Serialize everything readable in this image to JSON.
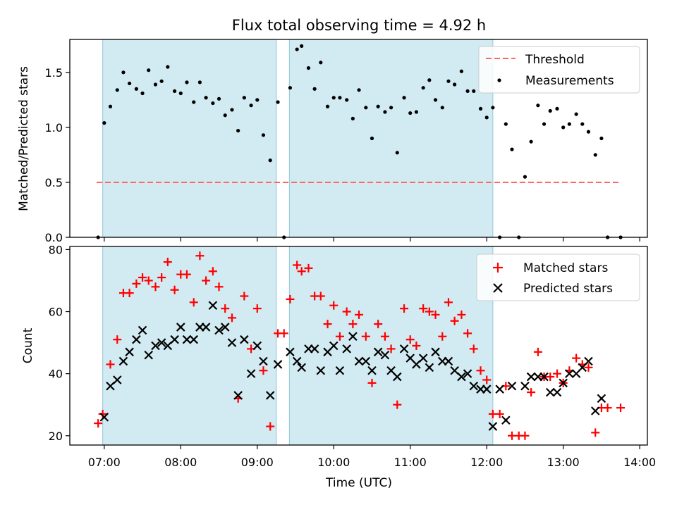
{
  "chart_data": [
    {
      "type": "scatter",
      "title": "Flux total observing time = 4.92 h",
      "xlabel": "",
      "ylabel": "Matched/Predicted stars",
      "x_unit": "hours UTC",
      "xlim": [
        6.55,
        14.1
      ],
      "ylim": [
        0,
        1.8
      ],
      "yticks": [
        0.0,
        0.5,
        1.0,
        1.5
      ],
      "ytick_labels": [
        "0.0",
        "0.5",
        "1.0",
        "1.5"
      ],
      "shaded_intervals": [
        [
          6.98,
          9.25
        ],
        [
          9.42,
          12.08
        ]
      ],
      "shade_color": "#add8e6",
      "legend_position": "top-right",
      "legend": [
        "Threshold",
        "Measurements"
      ],
      "threshold": {
        "name": "Threshold",
        "y": 0.5,
        "x": [
          6.9,
          13.75
        ],
        "color": "#ff6666",
        "style": "dashed"
      },
      "series": [
        {
          "name": "Measurements",
          "color": "#000000",
          "x": [
            6.92,
            7.0,
            7.08,
            7.17,
            7.25,
            7.33,
            7.42,
            7.5,
            7.58,
            7.67,
            7.75,
            7.83,
            7.92,
            8.0,
            8.08,
            8.17,
            8.25,
            8.33,
            8.42,
            8.5,
            8.58,
            8.67,
            8.75,
            8.83,
            8.92,
            9.0,
            9.08,
            9.17,
            9.27,
            9.35,
            9.43,
            9.52,
            9.58,
            9.67,
            9.75,
            9.83,
            9.92,
            10.0,
            10.08,
            10.17,
            10.25,
            10.33,
            10.42,
            10.5,
            10.58,
            10.67,
            10.75,
            10.83,
            10.92,
            11.0,
            11.08,
            11.17,
            11.25,
            11.33,
            11.42,
            11.5,
            11.58,
            11.67,
            11.75,
            11.83,
            11.92,
            12.0,
            12.08,
            12.17,
            12.25,
            12.33,
            12.42,
            12.5,
            12.58,
            12.67,
            12.75,
            12.83,
            12.92,
            13.0,
            13.08,
            13.17,
            13.25,
            13.33,
            13.42,
            13.5,
            13.58,
            13.75
          ],
          "y": [
            0.0,
            1.04,
            1.19,
            1.34,
            1.5,
            1.4,
            1.35,
            1.31,
            1.52,
            1.39,
            1.42,
            1.55,
            1.33,
            1.31,
            1.41,
            1.23,
            1.41,
            1.27,
            1.22,
            1.26,
            1.11,
            1.16,
            0.97,
            1.27,
            1.2,
            1.25,
            0.93,
            0.7,
            1.23,
            0.0,
            1.36,
            1.71,
            1.74,
            1.54,
            1.35,
            1.59,
            1.19,
            1.27,
            1.27,
            1.25,
            1.08,
            1.34,
            1.18,
            0.9,
            1.19,
            1.14,
            1.18,
            0.77,
            1.27,
            1.13,
            1.14,
            1.36,
            1.43,
            1.25,
            1.18,
            1.42,
            1.39,
            1.51,
            1.33,
            1.33,
            1.17,
            1.09,
            1.18,
            0.0,
            1.03,
            0.8,
            0.0,
            0.55,
            0.87,
            1.2,
            1.03,
            1.15,
            1.17,
            1.0,
            1.03,
            1.12,
            1.03,
            0.96,
            0.75,
            0.9,
            0.0,
            0.0
          ]
        }
      ]
    },
    {
      "type": "scatter",
      "title": "",
      "xlabel": "Time (UTC)",
      "ylabel": "Count",
      "x_unit": "hours UTC",
      "xlim": [
        6.55,
        14.1
      ],
      "ylim": [
        17,
        81
      ],
      "xticks": [
        7,
        8,
        9,
        10,
        11,
        12,
        13,
        14
      ],
      "xtick_labels": [
        "07:00",
        "08:00",
        "09:00",
        "10:00",
        "11:00",
        "12:00",
        "13:00",
        "14:00"
      ],
      "yticks": [
        20,
        40,
        60,
        80
      ],
      "ytick_labels": [
        "20",
        "40",
        "60",
        "80"
      ],
      "shaded_intervals": [
        [
          6.98,
          9.25
        ],
        [
          9.42,
          12.08
        ]
      ],
      "shade_color": "#add8e6",
      "legend_position": "top-right",
      "legend": [
        "Matched stars",
        "Predicted stars"
      ],
      "series": [
        {
          "name": "Matched stars",
          "marker": "+",
          "color": "#ff0000",
          "x": [
            6.92,
            6.98,
            7.08,
            7.17,
            7.25,
            7.33,
            7.42,
            7.5,
            7.58,
            7.67,
            7.75,
            7.83,
            7.92,
            8.0,
            8.08,
            8.17,
            8.25,
            8.33,
            8.42,
            8.5,
            8.58,
            8.67,
            8.75,
            8.83,
            8.92,
            9.0,
            9.08,
            9.17,
            9.27,
            9.35,
            9.43,
            9.52,
            9.58,
            9.67,
            9.75,
            9.83,
            9.92,
            10.0,
            10.08,
            10.17,
            10.25,
            10.33,
            10.42,
            10.5,
            10.58,
            10.67,
            10.75,
            10.83,
            10.92,
            11.0,
            11.08,
            11.17,
            11.25,
            11.33,
            11.42,
            11.5,
            11.58,
            11.67,
            11.75,
            11.83,
            11.92,
            12.0,
            12.08,
            12.17,
            12.25,
            12.33,
            12.42,
            12.5,
            12.58,
            12.67,
            12.75,
            12.83,
            12.92,
            13.0,
            13.08,
            13.17,
            13.25,
            13.33,
            13.42,
            13.5,
            13.58,
            13.75
          ],
          "y": [
            24,
            27,
            43,
            51,
            66,
            66,
            69,
            71,
            70,
            68,
            71,
            76,
            67,
            72,
            72,
            63,
            78,
            70,
            73,
            68,
            61,
            58,
            32,
            65,
            48,
            61,
            41,
            23,
            53,
            53,
            64,
            75,
            73,
            74,
            65,
            65,
            56,
            62,
            52,
            60,
            56,
            59,
            52,
            37,
            56,
            52,
            48,
            30,
            61,
            51,
            49,
            61,
            60,
            59,
            52,
            63,
            57,
            59,
            53,
            48,
            41,
            38,
            27,
            27,
            36,
            20,
            20,
            20,
            34,
            47,
            39,
            39,
            40,
            37,
            41,
            45,
            43,
            42,
            21,
            29,
            29,
            29
          ]
        },
        {
          "name": "Predicted stars",
          "marker": "x",
          "color": "#000000",
          "x": [
            7.0,
            7.08,
            7.17,
            7.25,
            7.33,
            7.42,
            7.5,
            7.58,
            7.67,
            7.75,
            7.83,
            7.92,
            8.0,
            8.08,
            8.17,
            8.25,
            8.33,
            8.42,
            8.5,
            8.58,
            8.67,
            8.75,
            8.83,
            8.92,
            9.0,
            9.08,
            9.17,
            9.27,
            9.43,
            9.52,
            9.58,
            9.67,
            9.75,
            9.83,
            9.92,
            10.0,
            10.08,
            10.17,
            10.25,
            10.33,
            10.42,
            10.5,
            10.58,
            10.67,
            10.75,
            10.83,
            10.92,
            11.0,
            11.08,
            11.17,
            11.25,
            11.33,
            11.42,
            11.5,
            11.58,
            11.67,
            11.75,
            11.83,
            11.92,
            12.0,
            12.08,
            12.17,
            12.25,
            12.33,
            12.5,
            12.58,
            12.67,
            12.75,
            12.83,
            12.92,
            13.0,
            13.08,
            13.17,
            13.25,
            13.33,
            13.42,
            13.5
          ],
          "y": [
            26,
            36,
            38,
            44,
            47,
            51,
            54,
            46,
            49,
            50,
            49,
            51,
            55,
            51,
            51,
            55,
            55,
            62,
            54,
            55,
            50,
            33,
            51,
            40,
            49,
            44,
            33,
            43,
            47,
            44,
            42,
            48,
            48,
            41,
            47,
            49,
            41,
            48,
            52,
            44,
            44,
            41,
            47,
            46,
            41,
            39,
            48,
            45,
            43,
            45,
            42,
            47,
            44,
            44,
            41,
            39,
            40,
            36,
            35,
            35,
            23,
            35,
            25,
            36,
            36,
            39,
            39,
            39,
            34,
            34,
            37,
            40,
            40,
            42,
            44,
            28,
            32
          ]
        }
      ]
    }
  ]
}
